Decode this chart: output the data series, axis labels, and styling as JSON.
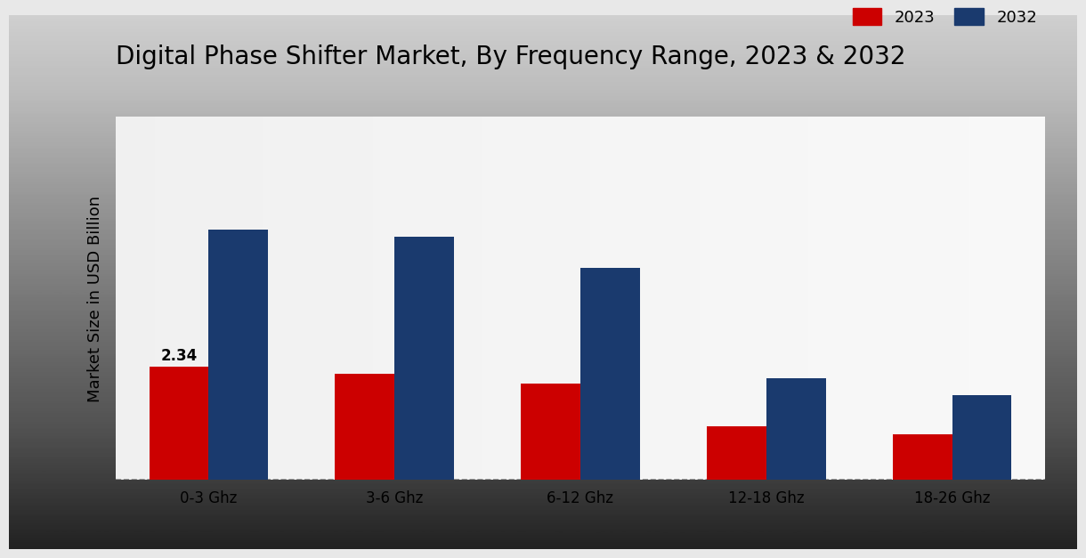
{
  "title": "Digital Phase Shifter Market, By Frequency Range, 2023 & 2032",
  "ylabel": "Market Size in USD Billion",
  "categories": [
    "0-3 Ghz",
    "3-6 Ghz",
    "6-12 Ghz",
    "12-18 Ghz",
    "18-26 Ghz"
  ],
  "values_2023": [
    2.34,
    2.2,
    2.0,
    1.1,
    0.95
  ],
  "values_2032": [
    5.2,
    5.05,
    4.4,
    2.1,
    1.75
  ],
  "color_2023": "#cc0000",
  "color_2032": "#1a3a6e",
  "bar_width": 0.32,
  "annotation_text": "2.34",
  "annotation_index": 0,
  "bg_color_top": "#f0f0f0",
  "bg_color_bottom": "#d0d0d0",
  "legend_labels": [
    "2023",
    "2032"
  ],
  "title_fontsize": 20,
  "axis_label_fontsize": 13,
  "tick_fontsize": 12,
  "legend_fontsize": 13,
  "bottom_bar_color": "#cc0000",
  "bottom_bar_height": 0.045
}
